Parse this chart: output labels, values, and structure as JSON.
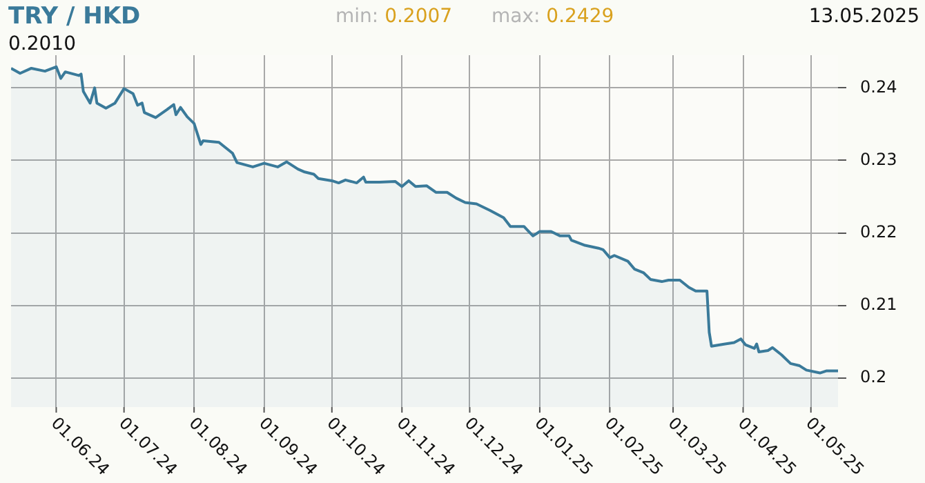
{
  "chart_data": {
    "type": "area",
    "title": "TRY / HKD",
    "annotations": [
      "min: 0.2007",
      "max: 0.2429",
      "13.05.2025",
      "0.2010"
    ],
    "x": [
      "2024-05-12",
      "2024-05-16",
      "2024-05-21",
      "2024-05-27",
      "2024-06-01",
      "2024-06-03",
      "2024-06-05",
      "2024-06-11",
      "2024-06-12",
      "2024-06-13",
      "2024-06-16",
      "2024-06-18",
      "2024-06-19",
      "2024-06-23",
      "2024-06-27",
      "2024-07-01",
      "2024-07-05",
      "2024-07-07",
      "2024-07-09",
      "2024-07-10",
      "2024-07-15",
      "2024-07-20",
      "2024-07-23",
      "2024-07-24",
      "2024-07-26",
      "2024-07-29",
      "2024-08-01",
      "2024-08-04",
      "2024-08-05",
      "2024-08-12",
      "2024-08-18",
      "2024-08-20",
      "2024-08-27",
      "2024-09-01",
      "2024-09-07",
      "2024-09-11",
      "2024-09-16",
      "2024-09-19",
      "2024-09-23",
      "2024-09-25",
      "2024-10-01",
      "2024-10-04",
      "2024-10-07",
      "2024-10-12",
      "2024-10-15",
      "2024-10-16",
      "2024-10-22",
      "2024-10-29",
      "2024-11-01",
      "2024-11-04",
      "2024-11-07",
      "2024-11-12",
      "2024-11-16",
      "2024-11-21",
      "2024-11-25",
      "2024-11-29",
      "2024-12-04",
      "2024-12-10",
      "2024-12-16",
      "2024-12-19",
      "2024-12-25",
      "2024-12-29",
      "2025-01-01",
      "2025-01-06",
      "2025-01-10",
      "2025-01-14",
      "2025-01-15",
      "2025-01-21",
      "2025-01-27",
      "2025-01-29",
      "2025-02-01",
      "2025-02-03",
      "2025-02-09",
      "2025-02-12",
      "2025-02-16",
      "2025-02-19",
      "2025-02-24",
      "2025-02-27",
      "2025-03-04",
      "2025-03-08",
      "2025-03-11",
      "2025-03-16",
      "2025-03-17",
      "2025-03-18",
      "2025-03-24",
      "2025-03-28",
      "2025-03-31",
      "2025-04-02",
      "2025-04-06",
      "2025-04-07",
      "2025-04-08",
      "2025-04-12",
      "2025-04-14",
      "2025-04-18",
      "2025-04-22",
      "2025-04-26",
      "2025-04-29",
      "2025-05-05",
      "2025-05-08",
      "2025-05-13"
    ],
    "series": [
      {
        "color": "#3a7a9a",
        "values": [
          0.2427,
          0.242,
          0.2427,
          0.2423,
          0.2429,
          0.2413,
          0.2422,
          0.2417,
          0.2419,
          0.2395,
          0.2379,
          0.24,
          0.2379,
          0.2372,
          0.2379,
          0.2399,
          0.2392,
          0.2376,
          0.2379,
          0.2366,
          0.2359,
          0.237,
          0.2377,
          0.2363,
          0.2373,
          0.236,
          0.2351,
          0.2322,
          0.2327,
          0.2325,
          0.231,
          0.2297,
          0.2291,
          0.2296,
          0.2291,
          0.2298,
          0.2288,
          0.2284,
          0.2281,
          0.2275,
          0.2272,
          0.2269,
          0.2273,
          0.2269,
          0.2277,
          0.227,
          0.227,
          0.2271,
          0.2264,
          0.2272,
          0.2264,
          0.2265,
          0.2256,
          0.2256,
          0.2248,
          0.2242,
          0.224,
          0.2231,
          0.2221,
          0.2209,
          0.2209,
          0.2196,
          0.2202,
          0.2202,
          0.2196,
          0.2196,
          0.219,
          0.2183,
          0.2179,
          0.2177,
          0.2166,
          0.2169,
          0.2161,
          0.215,
          0.2145,
          0.2136,
          0.2133,
          0.2135,
          0.2135,
          0.2125,
          0.212,
          0.212,
          0.2063,
          0.2044,
          0.2047,
          0.2049,
          0.2054,
          0.2046,
          0.2041,
          0.2047,
          0.2036,
          0.2038,
          0.2042,
          0.2032,
          0.202,
          0.2017,
          0.2011,
          0.2007,
          0.201,
          0.201
        ]
      }
    ],
    "xlim": [
      "2024-05-12",
      "2025-05-13"
    ],
    "xticks": [
      {
        "value": "2024-06-01",
        "label": "01.06.24"
      },
      {
        "value": "2024-07-01",
        "label": "01.07.24"
      },
      {
        "value": "2024-08-01",
        "label": "01.08.24"
      },
      {
        "value": "2024-09-01",
        "label": "01.09.24"
      },
      {
        "value": "2024-10-01",
        "label": "01.10.24"
      },
      {
        "value": "2024-11-01",
        "label": "01.11.24"
      },
      {
        "value": "2024-12-01",
        "label": "01.12.24"
      },
      {
        "value": "2025-01-01",
        "label": "01.01.25"
      },
      {
        "value": "2025-02-01",
        "label": "01.02.25"
      },
      {
        "value": "2025-03-01",
        "label": "01.03.25"
      },
      {
        "value": "2025-04-01",
        "label": "01.04.25"
      },
      {
        "value": "2025-05-01",
        "label": "01.05.25"
      }
    ],
    "ylim": [
      0.196,
      0.2445
    ],
    "yticks": [
      0.2,
      0.21,
      0.22,
      0.23,
      0.24
    ],
    "grid": true
  }
}
